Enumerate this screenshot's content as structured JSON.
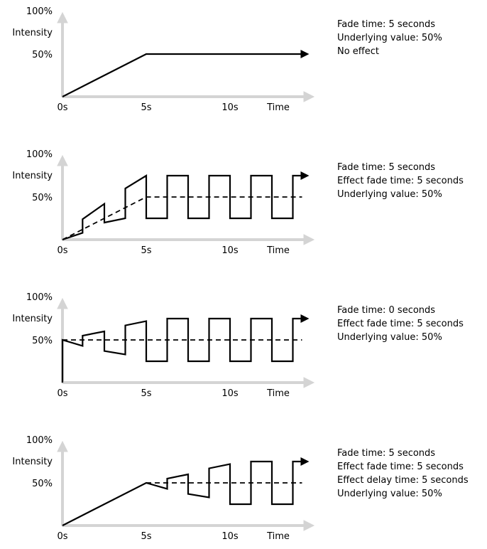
{
  "axis_labels": {
    "y_top": "100%",
    "y_mid": "50%",
    "y_title": "Intensity",
    "x_0": "0s",
    "x_5": "5s",
    "x_10": "10s",
    "x_title": "Time"
  },
  "panels": [
    {
      "notes": [
        "Fade time: 5 seconds",
        "Underlying value: 50%",
        "No effect"
      ],
      "solid": [
        [
          0,
          0
        ],
        [
          5,
          50
        ],
        [
          14.3,
          50
        ]
      ],
      "dashed": []
    },
    {
      "notes": [
        "Fade time: 5 seconds",
        "Effect fade time: 5 seconds",
        "Underlying value: 50%"
      ],
      "solid": [
        [
          0,
          0
        ],
        [
          1.2,
          8
        ],
        [
          1.2,
          24
        ],
        [
          2.5,
          42
        ],
        [
          2.5,
          20
        ],
        [
          3.75,
          25
        ],
        [
          3.75,
          60
        ],
        [
          5,
          75
        ],
        [
          5,
          50
        ],
        [
          5,
          50
        ],
        [
          5,
          50
        ],
        [
          5,
          50
        ],
        [
          5,
          50
        ],
        [
          5,
          50
        ],
        [
          5,
          50
        ],
        [
          5,
          50
        ],
        [
          5,
          50
        ],
        [
          5,
          50
        ],
        [
          5,
          50
        ],
        [
          5,
          50
        ],
        [
          5,
          50
        ],
        [
          5,
          50
        ],
        [
          5,
          50
        ],
        [
          5,
          50
        ],
        [
          5,
          50
        ],
        [
          5,
          50
        ],
        [
          5,
          50
        ],
        [
          5,
          25
        ],
        [
          6.25,
          25
        ],
        [
          6.25,
          75
        ],
        [
          7.5,
          75
        ],
        [
          7.5,
          25
        ],
        [
          8.75,
          25
        ],
        [
          8.75,
          75
        ],
        [
          10,
          75
        ],
        [
          10,
          25
        ],
        [
          11.25,
          25
        ],
        [
          11.25,
          75
        ],
        [
          12.5,
          75
        ],
        [
          12.5,
          25
        ],
        [
          13.75,
          25
        ],
        [
          13.75,
          75
        ],
        [
          14.3,
          75
        ]
      ],
      "dashed": [
        [
          0,
          0
        ],
        [
          5,
          50
        ],
        [
          14.3,
          50
        ]
      ]
    },
    {
      "notes": [
        "Fade time: 0 seconds",
        "Effect fade time: 5 seconds",
        "Underlying value: 50%"
      ],
      "solid": [
        [
          0,
          0
        ],
        [
          0,
          50
        ],
        [
          1.2,
          43
        ],
        [
          1.2,
          55
        ],
        [
          2.5,
          60
        ],
        [
          2.5,
          37
        ],
        [
          3.75,
          33
        ],
        [
          3.75,
          67
        ],
        [
          5,
          72
        ],
        [
          5,
          25
        ],
        [
          6.25,
          25
        ],
        [
          6.25,
          75
        ],
        [
          7.5,
          75
        ],
        [
          7.5,
          25
        ],
        [
          8.75,
          25
        ],
        [
          8.75,
          75
        ],
        [
          10,
          75
        ],
        [
          10,
          25
        ],
        [
          11.25,
          25
        ],
        [
          11.25,
          75
        ],
        [
          12.5,
          75
        ],
        [
          12.5,
          25
        ],
        [
          13.75,
          25
        ],
        [
          13.75,
          75
        ],
        [
          14.3,
          75
        ]
      ],
      "dashed": [
        [
          0,
          50
        ],
        [
          14.3,
          50
        ]
      ]
    },
    {
      "notes": [
        "Fade time: 5 seconds",
        "Effect fade time: 5 seconds",
        "Effect delay time: 5 seconds",
        "Underlying value: 50%"
      ],
      "solid": [
        [
          0,
          0
        ],
        [
          5,
          50
        ],
        [
          6.25,
          43
        ],
        [
          6.25,
          55
        ],
        [
          7.5,
          60
        ],
        [
          7.5,
          37
        ],
        [
          8.75,
          33
        ],
        [
          8.75,
          67
        ],
        [
          10,
          72
        ],
        [
          10,
          25
        ],
        [
          11.25,
          25
        ],
        [
          11.25,
          75
        ],
        [
          12.5,
          75
        ],
        [
          12.5,
          25
        ],
        [
          13.75,
          25
        ],
        [
          13.75,
          75
        ],
        [
          14.3,
          75
        ]
      ],
      "dashed": [
        [
          5,
          50
        ],
        [
          14.3,
          50
        ]
      ]
    }
  ]
}
